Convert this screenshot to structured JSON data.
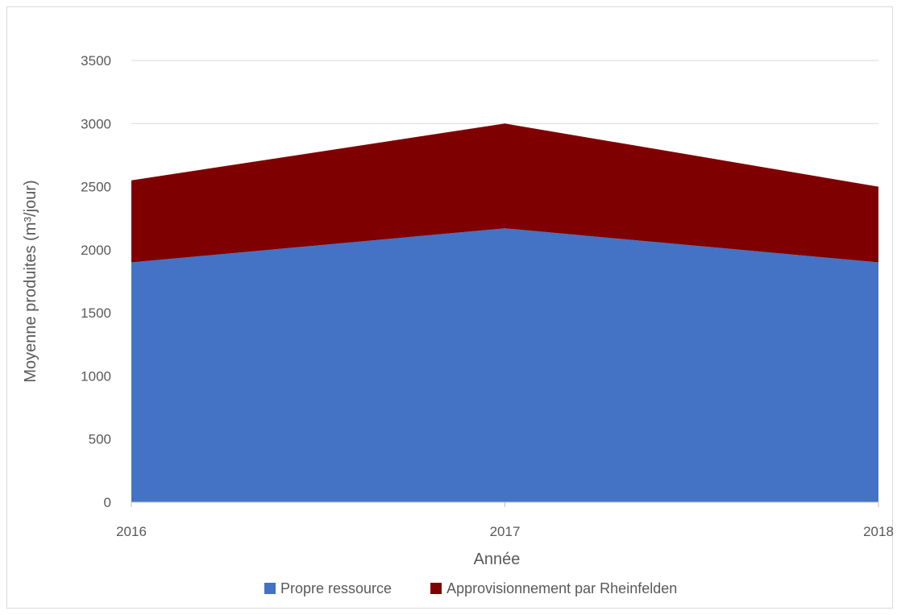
{
  "chart_data": {
    "type": "area",
    "stacked": true,
    "x": [
      "2016",
      "2017",
      "2018"
    ],
    "series": [
      {
        "name": "Propre ressource",
        "values": [
          1900,
          2170,
          1900
        ],
        "color": "#4472C4"
      },
      {
        "name": "Approvisionnement par Rheinfelden",
        "values": [
          650,
          830,
          600
        ],
        "color": "#7F0000"
      }
    ],
    "xlabel": "Année",
    "ylabel": "Moyenne produites (m³/jour)",
    "ylim": [
      0,
      3500
    ],
    "yticks": [
      "0",
      "500",
      "1000",
      "1500",
      "2000",
      "2500",
      "3000",
      "3500"
    ],
    "grid": true,
    "legend_position": "bottom"
  }
}
